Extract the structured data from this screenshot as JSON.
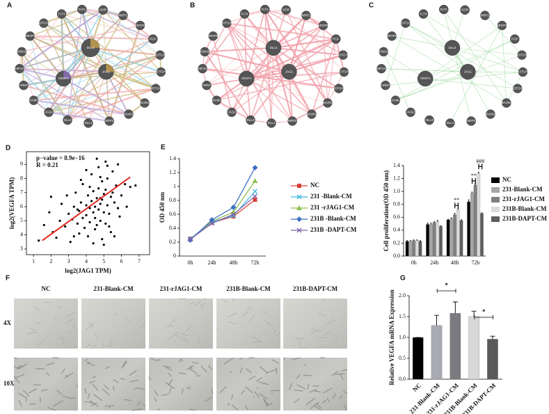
{
  "networks": [
    {
      "panel": "A",
      "edge_colors": [
        "#f3a7a9",
        "#8fd3e8",
        "#cdbb7b",
        "#b9a4d8"
      ],
      "node_color": "#555555",
      "ring": [
        "FLT1",
        "KDR",
        "NRP1",
        "VEGFB",
        "PGF",
        "NOTCH3",
        "NOTCH2",
        "NOTCH1",
        "NEURL1",
        "ADAM17",
        "NRP2",
        "DLL1",
        "DLL3",
        "JAG2",
        "ADAM10",
        "ARNT",
        "HIF1A",
        "SEMA3A",
        "MFAP5",
        "NOTCH4",
        "FLT4"
      ],
      "center": [
        "DLL4",
        "VEGFA",
        "JAG1"
      ]
    },
    {
      "panel": "B",
      "edge_colors": [
        "#f2a3ab"
      ],
      "node_color": "#555555",
      "ring": [
        "FLT1",
        "KDR",
        "NRP1",
        "VEGFB",
        "PGF",
        "NOTCH3",
        "NOTCH2",
        "NOTCH1",
        "NEURL1",
        "ADAM17",
        "NRP2",
        "DLL1",
        "DLL3",
        "JAG2",
        "ADAM10",
        "ARNT",
        "HIF1A",
        "SEMA3A",
        "MFAP5",
        "NOTCH4",
        "FLT4"
      ],
      "center": [
        "DLL4",
        "VEGFA",
        "JAG1"
      ]
    },
    {
      "panel": "C",
      "edge_colors": [
        "#93d493"
      ],
      "node_color": "#555555",
      "ring": [
        "FLT1",
        "KDR",
        "NRP1",
        "VEGFB",
        "PGF",
        "NOTCH3",
        "NOTCH2",
        "NOTCH1",
        "NEURL1",
        "ADAM17",
        "NRP2",
        "DLL1",
        "DLL3",
        "JAG2",
        "ADAM10",
        "ARNT",
        "HIF1A",
        "SEMA3A",
        "MFAP5",
        "NOTCH4",
        "FLT4"
      ],
      "center": [
        "DLL4",
        "VEGFA",
        "JAG1"
      ]
    }
  ],
  "chart_data": [
    {
      "type": "scatter",
      "panel": "D",
      "x_label": "log2(JAG1 TPM)",
      "y_label": "log2(VEGFA TPM)",
      "annotations": [
        "p−value = 8.9e−16",
        "R = 0.21"
      ],
      "color": "#000000",
      "xlim": [
        0.6,
        7.6
      ],
      "xticks": [
        1,
        2,
        3,
        4,
        5,
        6,
        7
      ],
      "ylim": [
        2.6,
        9.9
      ],
      "yticks": [
        3,
        4,
        5,
        6,
        7,
        8,
        9
      ],
      "x": [
        2.1,
        2.5,
        2.8,
        3.0,
        3.2,
        3.3,
        3.5,
        3.6,
        3.7,
        3.8,
        3.9,
        4.0,
        4.0,
        4.1,
        4.2,
        4.2,
        4.3,
        4.4,
        4.4,
        4.5,
        4.5,
        4.6,
        4.6,
        4.7,
        4.7,
        4.8,
        4.8,
        4.9,
        4.9,
        5.0,
        5.0,
        5.1,
        5.1,
        5.2,
        5.2,
        5.3,
        5.4,
        5.5,
        5.6,
        5.7,
        5.8,
        6.0,
        6.2,
        6.5,
        1.3,
        1.6,
        1.9,
        2.3,
        2.6,
        3.1,
        3.4,
        3.6,
        3.8,
        4.1,
        4.3,
        4.5,
        4.7,
        4.9,
        5.1,
        5.3,
        5.5,
        5.9,
        6.3,
        6.8,
        2.0,
        2.9,
        3.3,
        3.7,
        4.0,
        4.4,
        4.6,
        4.8,
        5.0,
        5.2,
        5.4,
        5.8,
        3.5,
        4.2,
        4.8,
        5.6
      ],
      "y": [
        4.2,
        5.0,
        4.6,
        5.5,
        5.1,
        6.0,
        4.8,
        5.7,
        6.3,
        5.2,
        4.5,
        6.1,
        5.4,
        6.8,
        5.9,
        4.9,
        6.4,
        5.6,
        7.1,
        6.0,
        5.2,
        6.6,
        4.7,
        7.3,
        5.8,
        6.2,
        5.0,
        7.8,
        6.5,
        5.6,
        6.9,
        7.2,
        4.8,
        6.1,
        8.0,
        5.5,
        6.7,
        7.0,
        6.3,
        7.5,
        5.9,
        6.8,
        7.6,
        7.4,
        3.6,
        4.7,
        5.6,
        3.8,
        6.2,
        3.5,
        7.0,
        4.1,
        7.6,
        3.9,
        8.3,
        4.4,
        8.8,
        3.7,
        9.2,
        4.6,
        8.5,
        5.3,
        6.0,
        7.5,
        6.7,
        6.8,
        3.9,
        7.9,
        8.6,
        3.4,
        9.4,
        8.1,
        3.3,
        8.9,
        4.2,
        9.0,
        5.8,
        7.4,
        6.6,
        3.9
      ],
      "fit": {
        "color": "#e2231a",
        "x": [
          1.5,
          6.5
        ],
        "y": [
          3.6,
          8.1
        ]
      }
    },
    {
      "type": "line",
      "panel": "E",
      "y_label": "OD 450 nm",
      "categories": [
        "0h",
        "24h",
        "48h",
        "72h"
      ],
      "ylim": [
        0,
        1.4
      ],
      "yticks": [
        0,
        0.2,
        0.4,
        0.6,
        0.8,
        1,
        1.2,
        1.4
      ],
      "series": [
        {
          "name": "NC",
          "color": "#d9413a",
          "marker": "square",
          "values": [
            0.25,
            0.48,
            0.57,
            0.81
          ]
        },
        {
          "name": "231 -Blank-CM",
          "color": "#3fb4dd",
          "marker": "x",
          "values": [
            0.25,
            0.49,
            0.58,
            0.93
          ]
        },
        {
          "name": "231 -rJAG1-CM",
          "color": "#8cc152",
          "marker": "triangle",
          "values": [
            0.24,
            0.5,
            0.63,
            1.08
          ]
        },
        {
          "name": "231B -Blank-CM",
          "color": "#3f6fc4",
          "marker": "diamond",
          "values": [
            0.23,
            0.52,
            0.7,
            1.27
          ]
        },
        {
          "name": "231B -DAPT-CM",
          "color": "#8562b0",
          "marker": "x",
          "values": [
            0.24,
            0.47,
            0.6,
            0.86
          ]
        }
      ]
    },
    {
      "type": "bar",
      "y_label": "Cell proliferation(OD 450 nm)",
      "categories": [
        "0h",
        "24h",
        "48h",
        "72h"
      ],
      "ylim": [
        0,
        1.4
      ],
      "yticks": [
        {
          "value": 0,
          "label": "0.0"
        },
        0.2,
        0.4,
        0.6,
        0.8,
        {
          "value": 1,
          "label": "1.0"
        },
        1.2,
        1.4
      ],
      "annotations": [
        "**",
        "**",
        "###"
      ],
      "series": [
        {
          "name": "NC",
          "color": "#000000",
          "values": [
            0.23,
            0.49,
            0.56,
            0.84
          ],
          "errors": [
            0.01,
            0.02,
            0.01,
            0.03
          ]
        },
        {
          "name": "231-Blank-CM",
          "color": "#a6a6a6",
          "values": [
            0.23,
            0.49,
            0.58,
            0.97
          ],
          "errors": [
            0.01,
            0.02,
            0.01,
            0.02
          ]
        },
        {
          "name": "231-rJAG1-CM",
          "color": "#7f7f7f",
          "values": [
            0.24,
            0.52,
            0.64,
            1.1
          ],
          "errors": [
            0.01,
            0.01,
            0.02,
            0.02
          ]
        },
        {
          "name": "231B-Blank-CM",
          "color": "#dcdcdc",
          "values": [
            0.24,
            0.53,
            0.72,
            1.28
          ],
          "errors": [
            0.01,
            0.02,
            0.02,
            0.02
          ]
        },
        {
          "name": "231B-DAPT-CM",
          "color": "#5e5e5e",
          "values": [
            0.23,
            0.46,
            0.55,
            0.66
          ],
          "errors": [
            0.01,
            0.01,
            0.01,
            0.01
          ]
        }
      ]
    },
    {
      "type": "bar",
      "panel": "G",
      "y_label": "Relative VEGFA mRNA Expression",
      "categories": [
        "NC",
        "231-Blank-CM",
        "231-rJAG1-CM",
        "231B-Blank-CM",
        "231B-DAPT-CM"
      ],
      "ylim": [
        0,
        2.0
      ],
      "yticks": [
        {
          "value": 0,
          "label": "0.0"
        },
        0.5,
        {
          "value": 1,
          "label": "1.0"
        },
        1.5,
        {
          "value": 2,
          "label": "2.0"
        }
      ],
      "annotations": [
        "*",
        "*"
      ],
      "series": [
        {
          "colors": [
            "#000000",
            "#a9a9b3",
            "#7a7a80",
            "#d8d8d8",
            "#5a5a5a"
          ],
          "values": [
            1.0,
            1.29,
            1.58,
            1.5,
            0.96
          ],
          "errors": [
            0,
            0.24,
            0.27,
            0.13,
            0.07
          ]
        }
      ]
    }
  ],
  "panel_f": {
    "panel": "F",
    "columns": [
      "NC",
      "231-Blank-CM",
      "231-rJAG1-CM",
      "231B-Blank-CM",
      "231B-DAPT-CM"
    ],
    "rows": [
      "4X",
      "10X"
    ]
  }
}
